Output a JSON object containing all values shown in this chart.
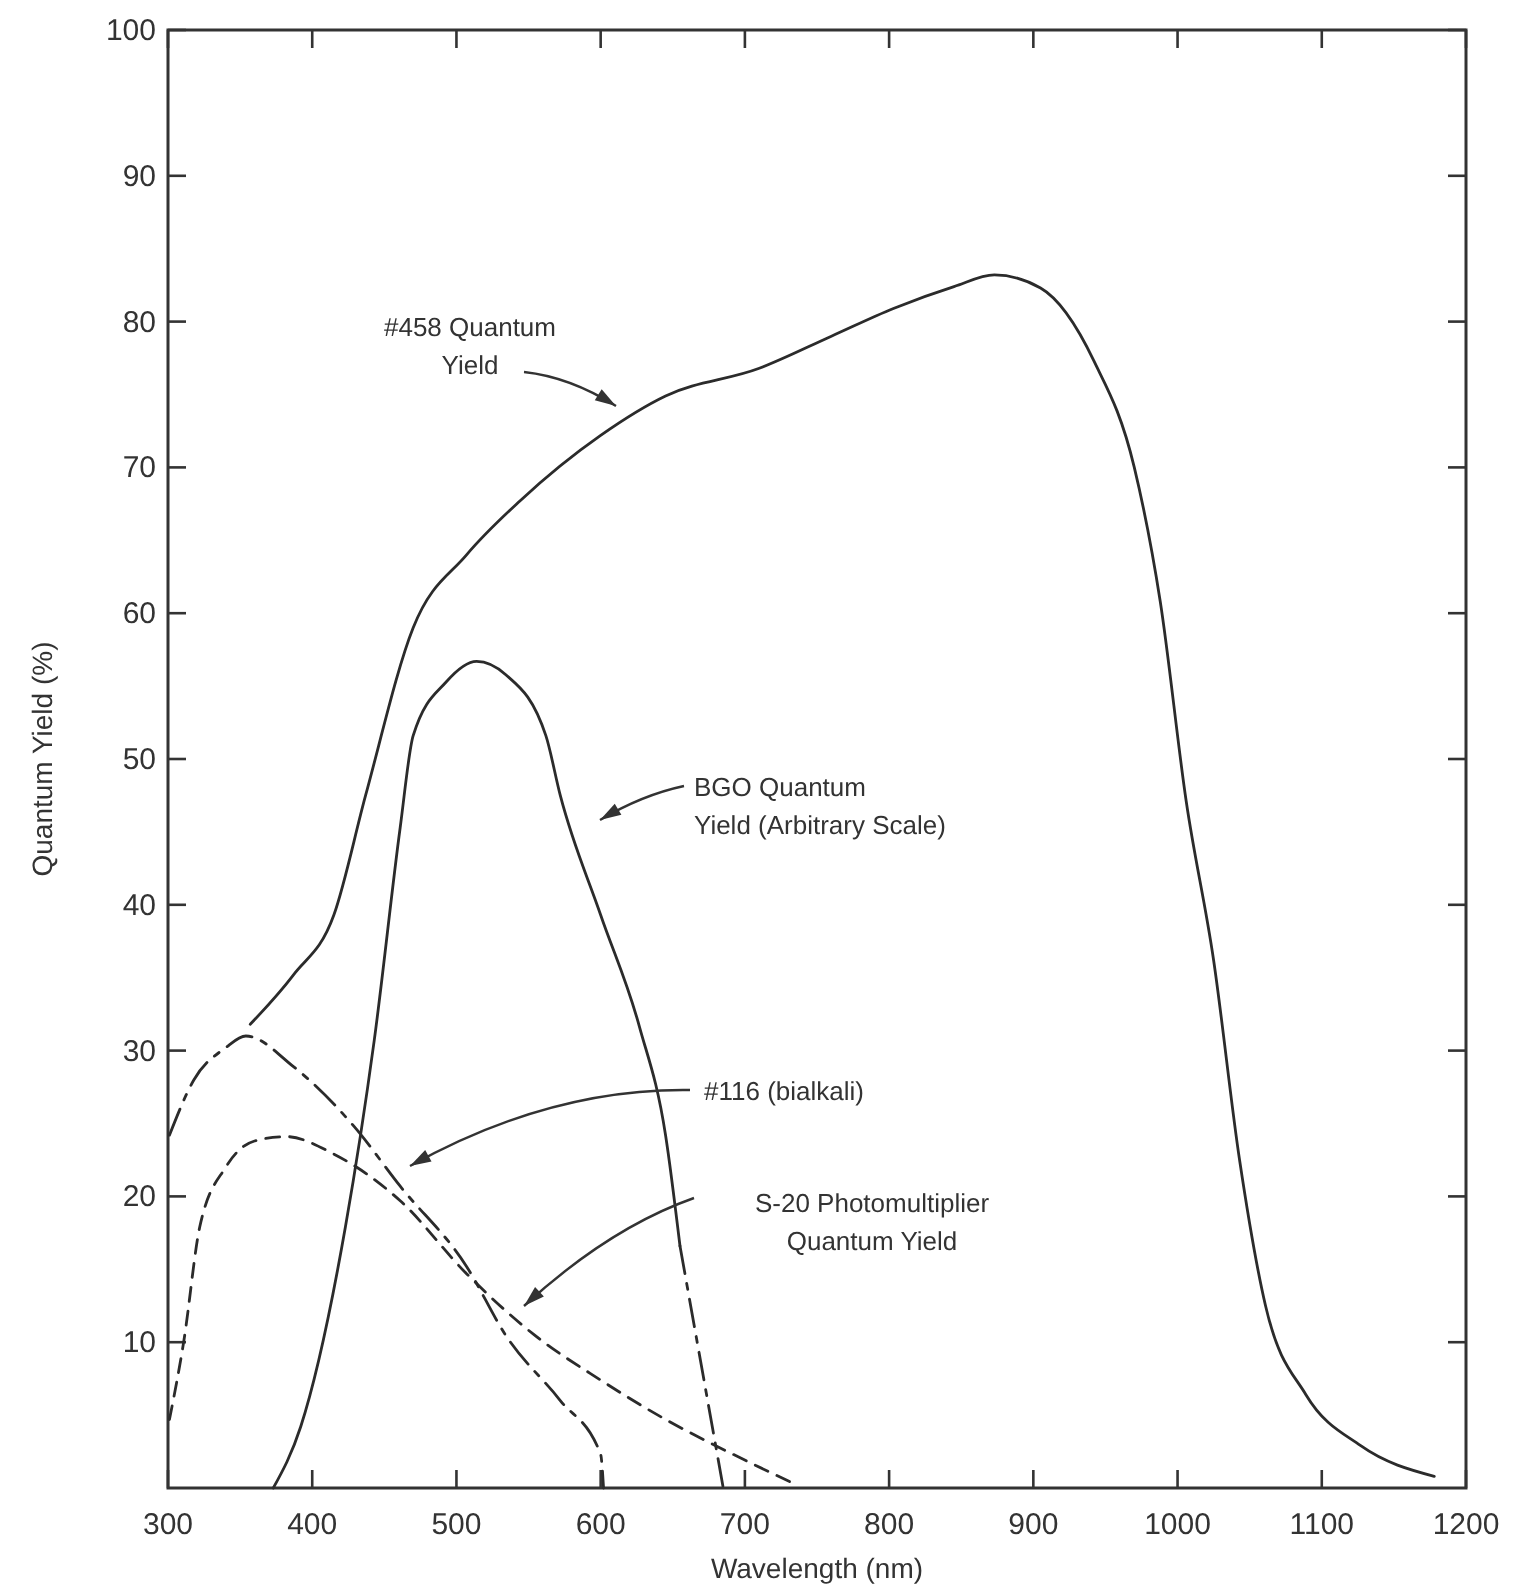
{
  "chart_data": {
    "type": "line",
    "xlabel": "Wavelength (nm)",
    "ylabel": "Quantum Yield (%)",
    "xlim": [
      300,
      1200
    ],
    "xticks": [
      300,
      400,
      500,
      600,
      700,
      800,
      900,
      1000,
      1100,
      1200
    ],
    "ylim": [
      0,
      100
    ],
    "yticks": [
      10,
      20,
      30,
      40,
      50,
      60,
      70,
      80,
      90,
      100
    ],
    "grid": false,
    "marker": "none",
    "series": [
      {
        "color": "#2b2b2b",
        "line_style": "solid",
        "x": [
          357,
          387,
          415,
          437,
          470,
          507,
          544,
          600,
          645,
          710,
          760,
          803,
          845,
          873,
          905,
          942,
          970,
          988,
          1006,
          1025,
          1043,
          1061,
          1089,
          1127,
          1178
        ],
        "values": [
          31.8,
          35.2,
          39.3,
          47.5,
          59,
          64,
          67.7,
          72.2,
          74.9,
          76.8,
          79,
          80.9,
          82.4,
          83.2,
          82.3,
          77.3,
          70,
          60.8,
          47.1,
          36.2,
          22.5,
          12.5,
          6.4,
          2.9,
          0.8
        ]
      },
      {
        "color": "#2b2b2b",
        "line_style": "solid",
        "x": [
          373,
          392,
          423,
          443,
          461,
          470,
          493,
          514,
          534,
          562,
          572,
          600,
          627,
          645,
          655
        ],
        "values": [
          0,
          4.2,
          17.9,
          30.7,
          45.3,
          51.6,
          55.3,
          56.7,
          55.8,
          51.6,
          47.5,
          39.3,
          31.6,
          24.2,
          16.6
        ]
      },
      {
        "color": "#2b2b2b",
        "line_style": "dashed",
        "x": [
          655,
          685
        ],
        "values": [
          16.6,
          0
        ]
      },
      {
        "color": "#2b2b2b",
        "line_style": "dashed",
        "x": [
          301,
          318,
          340,
          354,
          387,
          429,
          461,
          507,
          534,
          572,
          600,
          602
        ],
        "values": [
          24.2,
          28,
          30.2,
          31,
          28.9,
          24.8,
          20.7,
          15.2,
          10.5,
          6,
          2.3,
          0
        ]
      },
      {
        "color": "#2b2b2b",
        "line_style": "dotted",
        "x": [
          301,
          311,
          322,
          340,
          360,
          382,
          415,
          461,
          507,
          554,
          600,
          645,
          692,
          734
        ],
        "values": [
          4.7,
          10.1,
          17.9,
          22,
          23.8,
          24.1,
          22.9,
          19.7,
          14.7,
          10.5,
          7.4,
          4.7,
          2.3,
          0.3
        ]
      }
    ],
    "annotations": [
      "#458 Quantum\nYield",
      "BGO Quantum\nYield (Arbitrary Scale)",
      "#116 (bialkali)",
      "S-20 Photomultiplier\nQuantum Yield"
    ]
  }
}
